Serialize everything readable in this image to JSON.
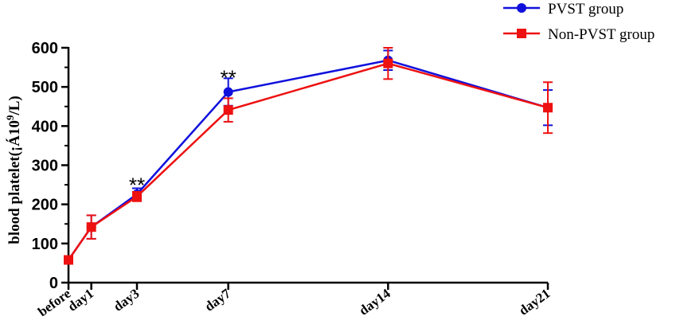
{
  "chart_data": {
    "type": "line",
    "title": "",
    "xlabel": "",
    "ylabel": "blood platelet(¡Á10",
    "ylabel_sup": "9",
    "ylabel_end": "/L)",
    "ylim": [
      0,
      600
    ],
    "yticks": [
      0,
      100,
      200,
      300,
      400,
      500,
      600
    ],
    "y_minor_step": 50,
    "x": [
      0,
      1,
      3,
      7,
      14,
      21
    ],
    "x_tick_labels": [
      "before",
      "day1",
      "day3",
      "day7",
      "day14",
      "day21"
    ],
    "x_range": [
      0,
      21
    ],
    "grid": false,
    "legend_placement": "top-right",
    "series": [
      {
        "name": "PVST group",
        "color": "#1010dd",
        "marker": "circle",
        "values": [
          58,
          142,
          226,
          487,
          568,
          447
        ],
        "errors": [
          4,
          30,
          15,
          35,
          25,
          45
        ]
      },
      {
        "name": "Non-PVST group",
        "color": "#ee1111",
        "marker": "square",
        "values": [
          58,
          142,
          220,
          441,
          560,
          447
        ],
        "errors": [
          4,
          30,
          12,
          30,
          40,
          65
        ]
      }
    ],
    "annotations": [
      {
        "text": "**",
        "x": 3,
        "y": 255
      },
      {
        "text": "**",
        "x": 7,
        "y": 530
      }
    ]
  }
}
